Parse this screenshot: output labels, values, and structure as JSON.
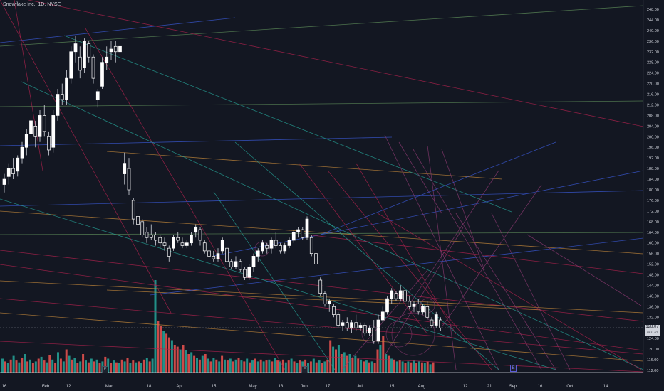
{
  "header": {
    "title": "Snowflake Inc., 1D, NYSE"
  },
  "chart_data": {
    "type": "candlestick",
    "title": "Snowflake Inc., 1D, NYSE",
    "ylim": [
      110,
      250
    ],
    "price_ticks": [
      "248.00",
      "244.00",
      "240.00",
      "236.00",
      "232.00",
      "228.00",
      "224.00",
      "220.00",
      "216.00",
      "212.00",
      "208.00",
      "204.00",
      "200.00",
      "196.00",
      "192.00",
      "188.00",
      "184.00",
      "180.00",
      "176.00",
      "172.00",
      "168.00",
      "164.00",
      "160.00",
      "156.00",
      "152.00",
      "148.00",
      "144.00",
      "140.00",
      "136.00",
      "132.00",
      "128.00",
      "124.00",
      "120.00",
      "116.00",
      "112.00"
    ],
    "date_ticks": [
      "16",
      "Feb",
      "12",
      "Mar",
      "18",
      "Apr",
      "15",
      "May",
      "13",
      "Jun",
      "17",
      "Jul",
      "15",
      "Aug",
      "12",
      "21",
      "Sep",
      "16",
      "Oct",
      "14"
    ],
    "last_price": {
      "label": "128.07",
      "sub": "05:11:57",
      "value": 128.07
    },
    "event_markers": [
      "E",
      "E",
      "E"
    ],
    "candles": [
      {
        "o": 182,
        "h": 186,
        "l": 179,
        "c": 184
      },
      {
        "o": 185,
        "h": 190,
        "l": 182,
        "c": 188
      },
      {
        "o": 188,
        "h": 192,
        "l": 184,
        "c": 186
      },
      {
        "o": 187,
        "h": 193,
        "l": 185,
        "c": 192
      },
      {
        "o": 192,
        "h": 198,
        "l": 190,
        "c": 196
      },
      {
        "o": 196,
        "h": 203,
        "l": 193,
        "c": 201
      },
      {
        "o": 201,
        "h": 208,
        "l": 198,
        "c": 206
      },
      {
        "o": 204,
        "h": 206,
        "l": 196,
        "c": 200
      },
      {
        "o": 200,
        "h": 210,
        "l": 198,
        "c": 208
      },
      {
        "o": 208,
        "h": 212,
        "l": 200,
        "c": 202
      },
      {
        "o": 200,
        "h": 202,
        "l": 193,
        "c": 195
      },
      {
        "o": 196,
        "h": 210,
        "l": 194,
        "c": 208
      },
      {
        "o": 208,
        "h": 218,
        "l": 206,
        "c": 216
      },
      {
        "o": 216,
        "h": 220,
        "l": 212,
        "c": 214
      },
      {
        "o": 214,
        "h": 225,
        "l": 212,
        "c": 222
      },
      {
        "o": 222,
        "h": 234,
        "l": 220,
        "c": 232
      },
      {
        "o": 232,
        "h": 238,
        "l": 228,
        "c": 235
      },
      {
        "o": 230,
        "h": 234,
        "l": 222,
        "c": 225
      },
      {
        "o": 226,
        "h": 237,
        "l": 224,
        "c": 236
      },
      {
        "o": 235,
        "h": 236,
        "l": 228,
        "c": 230
      },
      {
        "o": 230,
        "h": 231,
        "l": 220,
        "c": 222
      },
      {
        "o": 214,
        "h": 218,
        "l": 211,
        "c": 217
      },
      {
        "o": 219,
        "h": 230,
        "l": 218,
        "c": 228
      },
      {
        "o": 228,
        "h": 234,
        "l": 225,
        "c": 230
      },
      {
        "o": 232,
        "h": 236,
        "l": 229,
        "c": 233
      },
      {
        "o": 234,
        "h": 236,
        "l": 228,
        "c": 232
      },
      {
        "o": 232,
        "h": 235,
        "l": 228,
        "c": 234
      },
      {
        "o": 186,
        "h": 194,
        "l": 182,
        "c": 190
      },
      {
        "o": 188,
        "h": 192,
        "l": 178,
        "c": 180
      },
      {
        "o": 176,
        "h": 177,
        "l": 167,
        "c": 169
      },
      {
        "o": 170,
        "h": 172,
        "l": 165,
        "c": 167
      },
      {
        "o": 168,
        "h": 169,
        "l": 162,
        "c": 163
      },
      {
        "o": 164,
        "h": 166,
        "l": 160,
        "c": 162
      },
      {
        "o": 163,
        "h": 167,
        "l": 161,
        "c": 162
      },
      {
        "o": 163,
        "h": 164,
        "l": 159,
        "c": 161
      },
      {
        "o": 162,
        "h": 163,
        "l": 158,
        "c": 160
      },
      {
        "o": 160,
        "h": 162,
        "l": 157,
        "c": 159
      },
      {
        "o": 158,
        "h": 159,
        "l": 153,
        "c": 155
      },
      {
        "o": 158,
        "h": 163,
        "l": 157,
        "c": 162
      },
      {
        "o": 162,
        "h": 164,
        "l": 160,
        "c": 161
      },
      {
        "o": 160,
        "h": 162,
        "l": 158,
        "c": 159
      },
      {
        "o": 159,
        "h": 161,
        "l": 158,
        "c": 160
      },
      {
        "o": 160,
        "h": 164,
        "l": 159,
        "c": 163
      },
      {
        "o": 164,
        "h": 167,
        "l": 162,
        "c": 166
      },
      {
        "o": 165,
        "h": 166,
        "l": 159,
        "c": 161
      },
      {
        "o": 160,
        "h": 161,
        "l": 156,
        "c": 157
      },
      {
        "o": 157,
        "h": 158,
        "l": 154,
        "c": 155
      },
      {
        "o": 155,
        "h": 157,
        "l": 153,
        "c": 154
      },
      {
        "o": 154,
        "h": 158,
        "l": 153,
        "c": 156
      },
      {
        "o": 157,
        "h": 162,
        "l": 156,
        "c": 161
      },
      {
        "o": 158,
        "h": 160,
        "l": 152,
        "c": 153
      },
      {
        "o": 153,
        "h": 154,
        "l": 150,
        "c": 151
      },
      {
        "o": 151,
        "h": 155,
        "l": 150,
        "c": 153
      },
      {
        "o": 153,
        "h": 154,
        "l": 149,
        "c": 150
      },
      {
        "o": 150,
        "h": 151,
        "l": 146,
        "c": 147
      },
      {
        "o": 147,
        "h": 152,
        "l": 146,
        "c": 151
      },
      {
        "o": 151,
        "h": 156,
        "l": 149,
        "c": 155
      },
      {
        "o": 155,
        "h": 158,
        "l": 153,
        "c": 157
      },
      {
        "o": 157,
        "h": 161,
        "l": 156,
        "c": 160
      },
      {
        "o": 159,
        "h": 160,
        "l": 156,
        "c": 158
      },
      {
        "o": 158,
        "h": 162,
        "l": 156,
        "c": 161
      },
      {
        "o": 161,
        "h": 164,
        "l": 158,
        "c": 159
      },
      {
        "o": 159,
        "h": 160,
        "l": 156,
        "c": 157
      },
      {
        "o": 157,
        "h": 160,
        "l": 156,
        "c": 159
      },
      {
        "o": 159,
        "h": 162,
        "l": 158,
        "c": 161
      },
      {
        "o": 161,
        "h": 165,
        "l": 160,
        "c": 164
      },
      {
        "o": 164,
        "h": 166,
        "l": 162,
        "c": 165
      },
      {
        "o": 165,
        "h": 166,
        "l": 161,
        "c": 162
      },
      {
        "o": 162,
        "h": 170,
        "l": 161,
        "c": 169
      },
      {
        "o": 162,
        "h": 163,
        "l": 155,
        "c": 156
      },
      {
        "o": 156,
        "h": 157,
        "l": 149,
        "c": 152
      },
      {
        "o": 146,
        "h": 147,
        "l": 140,
        "c": 141
      },
      {
        "o": 141,
        "h": 142,
        "l": 136,
        "c": 137
      },
      {
        "o": 137,
        "h": 139,
        "l": 134,
        "c": 138
      },
      {
        "o": 136,
        "h": 137,
        "l": 132,
        "c": 133
      },
      {
        "o": 133,
        "h": 134,
        "l": 128,
        "c": 129
      },
      {
        "o": 129,
        "h": 131,
        "l": 127,
        "c": 130
      },
      {
        "o": 130,
        "h": 132,
        "l": 127,
        "c": 128
      },
      {
        "o": 128,
        "h": 131,
        "l": 126,
        "c": 130
      },
      {
        "o": 130,
        "h": 133,
        "l": 127,
        "c": 128
      },
      {
        "o": 128,
        "h": 130,
        "l": 127,
        "c": 129
      },
      {
        "o": 129,
        "h": 130,
        "l": 125,
        "c": 126
      },
      {
        "o": 126,
        "h": 129,
        "l": 125,
        "c": 128
      },
      {
        "o": 128,
        "h": 131,
        "l": 122,
        "c": 123
      },
      {
        "o": 123,
        "h": 133,
        "l": 122,
        "c": 131
      },
      {
        "o": 131,
        "h": 136,
        "l": 130,
        "c": 134
      },
      {
        "o": 134,
        "h": 140,
        "l": 133,
        "c": 139
      },
      {
        "o": 139,
        "h": 143,
        "l": 137,
        "c": 142
      },
      {
        "o": 141,
        "h": 142,
        "l": 138,
        "c": 139
      },
      {
        "o": 139,
        "h": 144,
        "l": 138,
        "c": 142
      },
      {
        "o": 142,
        "h": 143,
        "l": 137,
        "c": 138
      },
      {
        "o": 138,
        "h": 140,
        "l": 135,
        "c": 136
      },
      {
        "o": 136,
        "h": 138,
        "l": 134,
        "c": 137
      },
      {
        "o": 137,
        "h": 139,
        "l": 133,
        "c": 134
      },
      {
        "o": 134,
        "h": 137,
        "l": 133,
        "c": 136
      },
      {
        "o": 136,
        "h": 138,
        "l": 131,
        "c": 132
      },
      {
        "o": 131,
        "h": 132,
        "l": 128,
        "c": 129
      },
      {
        "o": 129,
        "h": 134,
        "l": 128,
        "c": 133
      },
      {
        "o": 131,
        "h": 132,
        "l": 127,
        "c": 128
      }
    ],
    "volume_bars": [
      {
        "v": 0.15,
        "up": true
      },
      {
        "v": 0.12,
        "up": false
      },
      {
        "v": 0.1,
        "up": true
      },
      {
        "v": 0.14,
        "up": false
      },
      {
        "v": 0.18,
        "up": true
      },
      {
        "v": 0.13,
        "up": false
      },
      {
        "v": 0.11,
        "up": true
      },
      {
        "v": 0.16,
        "up": false
      },
      {
        "v": 0.2,
        "up": true
      },
      {
        "v": 0.12,
        "up": false
      },
      {
        "v": 0.14,
        "up": true
      },
      {
        "v": 0.1,
        "up": false
      },
      {
        "v": 0.12,
        "up": true
      },
      {
        "v": 0.15,
        "up": false
      },
      {
        "v": 0.17,
        "up": true
      },
      {
        "v": 0.13,
        "up": false
      },
      {
        "v": 0.11,
        "up": true
      },
      {
        "v": 0.19,
        "up": false
      },
      {
        "v": 0.14,
        "up": true
      },
      {
        "v": 0.1,
        "up": false
      },
      {
        "v": 0.22,
        "up": true
      },
      {
        "v": 0.15,
        "up": false
      },
      {
        "v": 0.12,
        "up": true
      },
      {
        "v": 0.25,
        "up": false
      },
      {
        "v": 0.18,
        "up": true
      },
      {
        "v": 0.14,
        "up": false
      },
      {
        "v": 0.16,
        "up": true
      },
      {
        "v": 0.1,
        "up": false
      },
      {
        "v": 0.12,
        "up": true
      },
      {
        "v": 0.2,
        "up": false
      },
      {
        "v": 0.13,
        "up": true
      },
      {
        "v": 0.11,
        "up": false
      },
      {
        "v": 0.15,
        "up": true
      },
      {
        "v": 0.12,
        "up": false
      },
      {
        "v": 0.14,
        "up": true
      },
      {
        "v": 0.1,
        "up": false
      },
      {
        "v": 0.12,
        "up": true
      },
      {
        "v": 0.17,
        "up": false
      },
      {
        "v": 0.15,
        "up": true
      },
      {
        "v": 0.1,
        "up": false
      },
      {
        "v": 0.13,
        "up": true
      },
      {
        "v": 0.11,
        "up": false
      },
      {
        "v": 0.1,
        "up": true
      },
      {
        "v": 0.14,
        "up": false
      },
      {
        "v": 0.12,
        "up": true
      },
      {
        "v": 0.16,
        "up": false
      },
      {
        "v": 0.1,
        "up": true
      },
      {
        "v": 0.13,
        "up": false
      },
      {
        "v": 0.11,
        "up": true
      },
      {
        "v": 0.12,
        "up": false
      },
      {
        "v": 0.1,
        "up": true
      },
      {
        "v": 0.14,
        "up": false
      },
      {
        "v": 0.16,
        "up": true
      },
      {
        "v": 0.12,
        "up": false
      },
      {
        "v": 0.15,
        "up": true
      },
      {
        "v": 1.0,
        "up": true
      },
      {
        "v": 0.56,
        "up": false
      },
      {
        "v": 0.5,
        "up": false
      },
      {
        "v": 0.45,
        "up": true
      },
      {
        "v": 0.42,
        "up": false
      },
      {
        "v": 0.38,
        "up": false
      },
      {
        "v": 0.35,
        "up": true
      },
      {
        "v": 0.3,
        "up": false
      },
      {
        "v": 0.28,
        "up": false
      },
      {
        "v": 0.25,
        "up": true
      },
      {
        "v": 0.3,
        "up": false
      },
      {
        "v": 0.24,
        "up": true
      },
      {
        "v": 0.2,
        "up": false
      },
      {
        "v": 0.22,
        "up": true
      },
      {
        "v": 0.18,
        "up": false
      },
      {
        "v": 0.16,
        "up": true
      },
      {
        "v": 0.14,
        "up": false
      },
      {
        "v": 0.18,
        "up": true
      },
      {
        "v": 0.2,
        "up": false
      },
      {
        "v": 0.15,
        "up": true
      },
      {
        "v": 0.12,
        "up": false
      },
      {
        "v": 0.16,
        "up": true
      },
      {
        "v": 0.14,
        "up": false
      },
      {
        "v": 0.12,
        "up": true
      },
      {
        "v": 0.18,
        "up": false
      },
      {
        "v": 0.14,
        "up": true
      },
      {
        "v": 0.13,
        "up": false
      },
      {
        "v": 0.15,
        "up": true
      },
      {
        "v": 0.12,
        "up": false
      },
      {
        "v": 0.14,
        "up": true
      },
      {
        "v": 0.16,
        "up": false
      },
      {
        "v": 0.13,
        "up": true
      },
      {
        "v": 0.12,
        "up": false
      },
      {
        "v": 0.15,
        "up": true
      },
      {
        "v": 0.11,
        "up": false
      },
      {
        "v": 0.13,
        "up": true
      },
      {
        "v": 0.15,
        "up": false
      },
      {
        "v": 0.12,
        "up": true
      },
      {
        "v": 0.14,
        "up": false
      },
      {
        "v": 0.12,
        "up": true
      },
      {
        "v": 0.13,
        "up": false
      },
      {
        "v": 0.14,
        "up": true
      },
      {
        "v": 0.12,
        "up": false
      },
      {
        "v": 0.16,
        "up": true
      },
      {
        "v": 0.13,
        "up": false
      },
      {
        "v": 0.12,
        "up": true
      },
      {
        "v": 0.14,
        "up": false
      },
      {
        "v": 0.11,
        "up": true
      },
      {
        "v": 0.13,
        "up": false
      },
      {
        "v": 0.15,
        "up": true
      },
      {
        "v": 0.12,
        "up": false
      },
      {
        "v": 0.1,
        "up": true
      },
      {
        "v": 0.13,
        "up": false
      },
      {
        "v": 0.12,
        "up": true
      },
      {
        "v": 0.14,
        "up": false
      },
      {
        "v": 0.1,
        "up": true
      },
      {
        "v": 0.12,
        "up": false
      },
      {
        "v": 0.15,
        "up": true
      },
      {
        "v": 0.11,
        "up": false
      },
      {
        "v": 0.13,
        "up": true
      },
      {
        "v": 0.1,
        "up": false
      },
      {
        "v": 0.12,
        "up": true
      },
      {
        "v": 0.14,
        "up": false
      },
      {
        "v": 0.35,
        "up": false
      },
      {
        "v": 0.28,
        "up": true
      },
      {
        "v": 0.25,
        "up": false
      },
      {
        "v": 0.3,
        "up": true
      },
      {
        "v": 0.2,
        "up": false
      },
      {
        "v": 0.22,
        "up": true
      },
      {
        "v": 0.18,
        "up": false
      },
      {
        "v": 0.2,
        "up": true
      },
      {
        "v": 0.16,
        "up": false
      },
      {
        "v": 0.18,
        "up": true
      },
      {
        "v": 0.15,
        "up": false
      },
      {
        "v": 0.14,
        "up": true
      },
      {
        "v": 0.12,
        "up": false
      },
      {
        "v": 0.13,
        "up": true
      },
      {
        "v": 0.11,
        "up": false
      },
      {
        "v": 0.12,
        "up": true
      },
      {
        "v": 0.1,
        "up": false
      },
      {
        "v": 0.25,
        "up": false
      },
      {
        "v": 0.3,
        "up": true
      },
      {
        "v": 0.4,
        "up": false
      },
      {
        "v": 0.2,
        "up": true
      },
      {
        "v": 0.18,
        "up": false
      },
      {
        "v": 0.15,
        "up": true
      },
      {
        "v": 0.14,
        "up": false
      },
      {
        "v": 0.12,
        "up": true
      },
      {
        "v": 0.13,
        "up": false
      },
      {
        "v": 0.12,
        "up": true
      },
      {
        "v": 0.1,
        "up": false
      },
      {
        "v": 0.12,
        "up": true
      },
      {
        "v": 0.11,
        "up": false
      },
      {
        "v": 0.13,
        "up": true
      },
      {
        "v": 0.1,
        "up": false
      },
      {
        "v": 0.12,
        "up": true
      },
      {
        "v": 0.11,
        "up": false
      },
      {
        "v": 0.1,
        "up": true
      },
      {
        "v": 0.12,
        "up": false
      },
      {
        "v": 0.09,
        "up": true
      },
      {
        "v": 0.11,
        "up": false
      }
    ],
    "colors": {
      "background": "#131722",
      "candle_up": "#ffffff",
      "candle_down": "#ffffff",
      "volume_up": "#26a69a",
      "volume_down": "#ef5350",
      "axis_text": "#d1d4dc",
      "trend_red": "#b2224e",
      "trend_blue": "#3b5bdb",
      "trend_teal": "#26a69a",
      "trend_orange": "#c78a3b",
      "trend_green": "#5f8f5a",
      "trend_magenta": "#8e3a73"
    }
  }
}
